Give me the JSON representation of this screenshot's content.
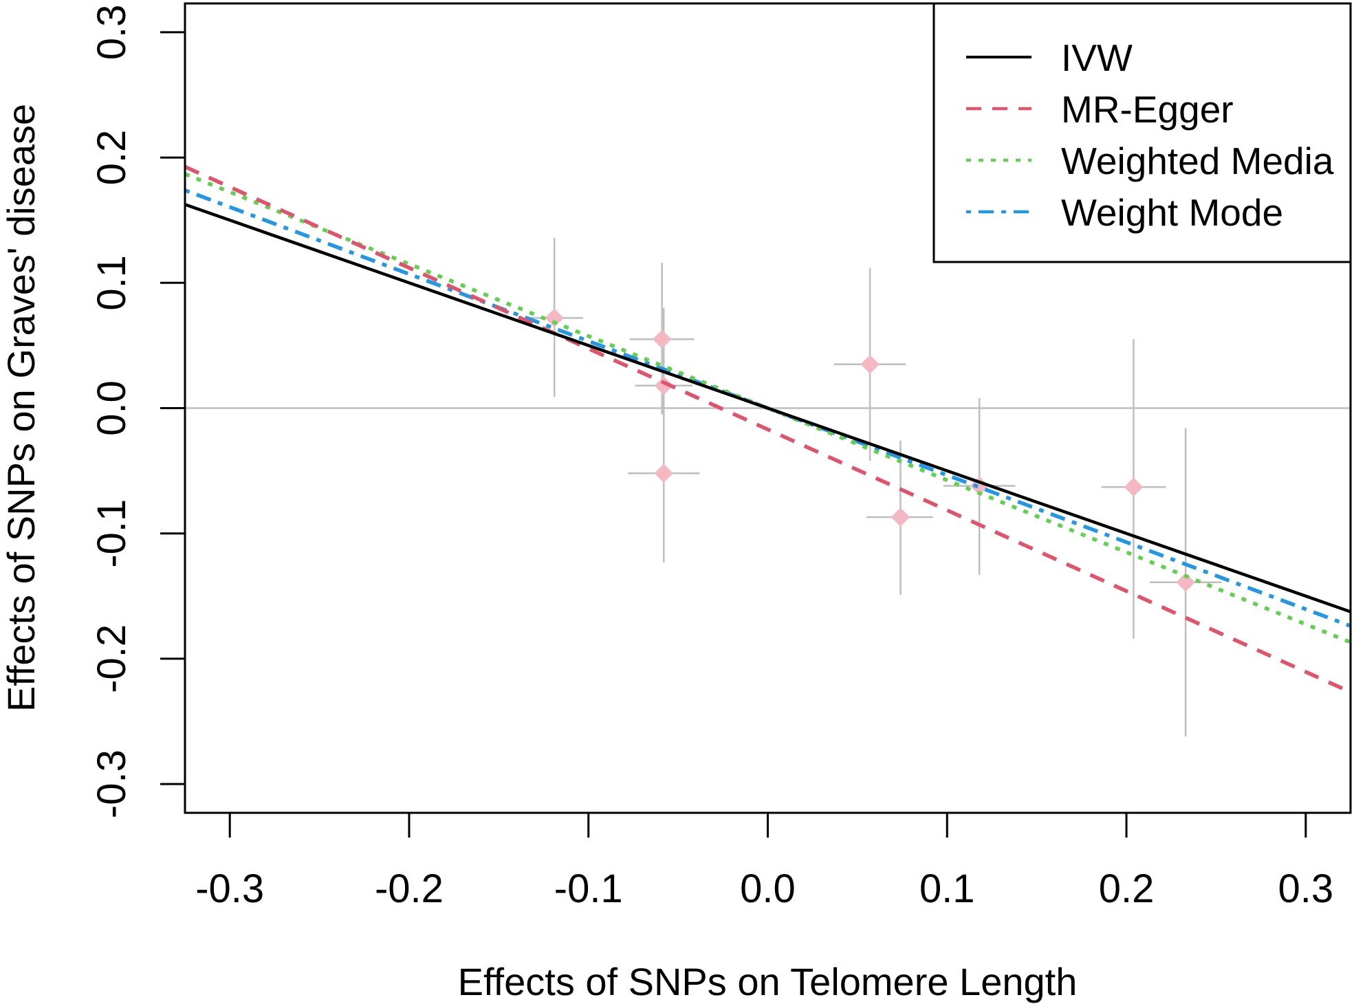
{
  "chart_data": {
    "type": "scatter",
    "title": "",
    "xlabel": "Effects of SNPs on Telomere Length",
    "ylabel": "Effects of SNPs on Graves' disease",
    "xlim": [
      -0.325,
      0.325
    ],
    "ylim": [
      -0.323,
      0.323
    ],
    "x_ticks": [
      -0.3,
      -0.2,
      -0.1,
      0.0,
      0.1,
      0.2,
      0.3
    ],
    "x_tick_labels": [
      "-0.3",
      "-0.2",
      "-0.1",
      "0.0",
      "0.1",
      "0.2",
      "0.3"
    ],
    "y_ticks": [
      -0.3,
      -0.2,
      -0.1,
      0.0,
      0.1,
      0.2,
      0.3
    ],
    "y_tick_labels": [
      "-0.3",
      "-0.2",
      "-0.1",
      "0.0",
      "0.1",
      "0.2",
      "0.3"
    ],
    "reference_line_y": 0.0,
    "points": [
      {
        "x": -0.119,
        "y": 0.072,
        "x_low": -0.135,
        "x_high": -0.103,
        "y_low": 0.009,
        "y_high": 0.136
      },
      {
        "x": -0.059,
        "y": 0.055,
        "x_low": -0.077,
        "x_high": -0.041,
        "y_low": -0.005,
        "y_high": 0.116
      },
      {
        "x": -0.058,
        "y": 0.018,
        "x_low": -0.074,
        "x_high": -0.042,
        "y_low": -0.004,
        "y_high": 0.08
      },
      {
        "x": -0.058,
        "y": -0.052,
        "x_low": -0.078,
        "x_high": -0.038,
        "y_low": -0.123,
        "y_high": 0.02
      },
      {
        "x": 0.057,
        "y": 0.035,
        "x_low": 0.037,
        "x_high": 0.077,
        "y_low": -0.042,
        "y_high": 0.112
      },
      {
        "x": 0.074,
        "y": -0.087,
        "x_low": 0.055,
        "x_high": 0.092,
        "y_low": -0.149,
        "y_high": -0.026
      },
      {
        "x": 0.118,
        "y": -0.062,
        "x_low": 0.098,
        "x_high": 0.138,
        "y_low": -0.133,
        "y_high": 0.008
      },
      {
        "x": 0.204,
        "y": -0.063,
        "x_low": 0.186,
        "x_high": 0.222,
        "y_low": -0.184,
        "y_high": 0.055
      },
      {
        "x": 0.233,
        "y": -0.139,
        "x_low": 0.213,
        "x_high": 0.253,
        "y_low": -0.262,
        "y_high": -0.016
      }
    ],
    "fit_lines": [
      {
        "name": "IVW",
        "slope": -0.5,
        "intercept": 0.0,
        "color": "#000000",
        "style": "solid"
      },
      {
        "name": "MR-Egger",
        "slope": -0.645,
        "intercept": -0.017,
        "color": "#DF536B",
        "style": "dashed"
      },
      {
        "name": "Weighted Media",
        "slope": -0.575,
        "intercept": 0.0,
        "color": "#61D04F",
        "style": "dotted"
      },
      {
        "name": "Weight Mode",
        "slope": -0.535,
        "intercept": 0.0,
        "color": "#2297E6",
        "style": "dotdash"
      }
    ],
    "legend": {
      "position": "top-right",
      "entries": [
        "IVW",
        "MR-Egger",
        "Weighted Media",
        "Weight Mode"
      ]
    },
    "colors": {
      "point_fill": "#F4B8C3",
      "error_bar": "#BEBEBE",
      "reference_line": "#BEBEBE",
      "axis": "#000000"
    }
  }
}
